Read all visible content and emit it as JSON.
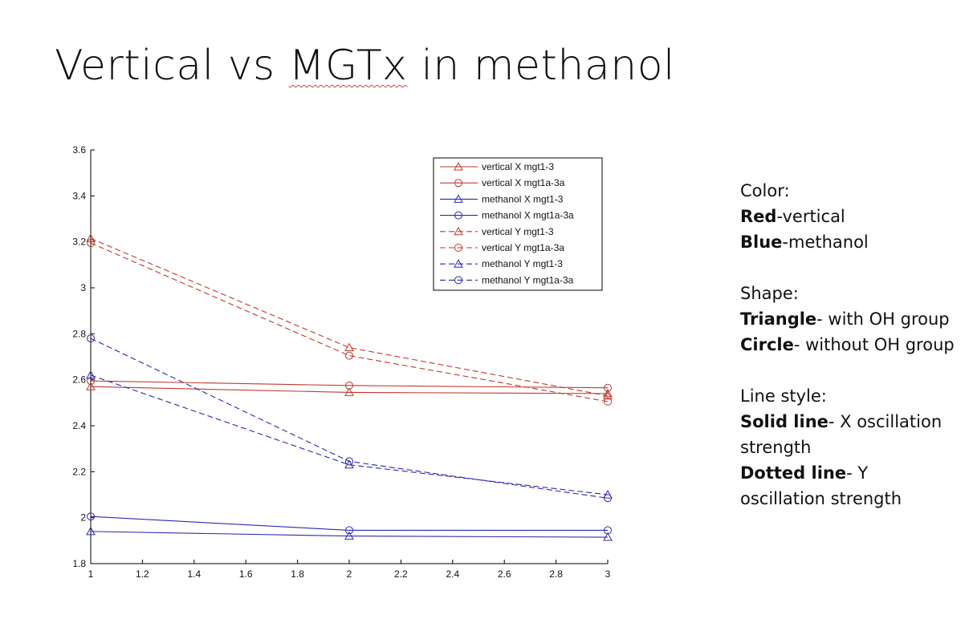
{
  "slide": {
    "title_parts": [
      "Vertical vs ",
      "MGTx",
      " in methanol"
    ]
  },
  "notes": {
    "color_heading": "Color:",
    "color_items": [
      {
        "bold": "Red",
        "text": "-vertical"
      },
      {
        "bold": "Blue",
        "text": "-methanol"
      }
    ],
    "shape_heading": "Shape:",
    "shape_items": [
      {
        "bold": "Triangle",
        "text": "- with OH group"
      },
      {
        "bold": "Circle",
        "text": "- without OH group"
      }
    ],
    "line_heading": "Line style:",
    "line_items": [
      {
        "bold": "Solid line",
        "text": "- X oscillation strength"
      },
      {
        "bold": "Dotted line",
        "text": "- Y oscillation strength"
      }
    ]
  },
  "chart_data": {
    "type": "line",
    "title": "",
    "xlabel": "",
    "ylabel": "",
    "xlim": [
      1,
      3
    ],
    "ylim": [
      1.8,
      3.6
    ],
    "xticks": [
      "1",
      "1.2",
      "1.4",
      "1.6",
      "1.8",
      "2",
      "2.2",
      "2.4",
      "2.6",
      "2.8",
      "3"
    ],
    "yticks": [
      "1.8",
      "2",
      "2.2",
      "2.4",
      "2.6",
      "2.8",
      "3",
      "3.2",
      "3.4",
      "3.6"
    ],
    "grid": false,
    "legend_position": "top-right",
    "x": [
      1,
      2,
      3
    ],
    "series": [
      {
        "name": "vertical X mgt1-3",
        "values": [
          2.57,
          2.545,
          2.54
        ],
        "color": "#c0392b",
        "marker": "triangle",
        "dash": false
      },
      {
        "name": "vertical X mgt1a-3a",
        "values": [
          2.595,
          2.575,
          2.565
        ],
        "color": "#c0392b",
        "marker": "circle",
        "dash": false
      },
      {
        "name": "methanol X mgt1-3",
        "values": [
          1.94,
          1.92,
          1.915
        ],
        "color": "#2a2ab0",
        "marker": "triangle",
        "dash": false
      },
      {
        "name": "methanol X mgt1a-3a",
        "values": [
          2.005,
          1.945,
          1.945
        ],
        "color": "#2a2ab0",
        "marker": "circle",
        "dash": false
      },
      {
        "name": "vertical Y mgt1-3",
        "values": [
          3.215,
          2.74,
          2.53
        ],
        "color": "#c0392b",
        "marker": "triangle",
        "dash": true
      },
      {
        "name": "vertical Y mgt1a-3a",
        "values": [
          3.195,
          2.705,
          2.505
        ],
        "color": "#c0392b",
        "marker": "circle",
        "dash": true
      },
      {
        "name": "methanol Y mgt1-3",
        "values": [
          2.62,
          2.23,
          2.1
        ],
        "color": "#2a2ab0",
        "marker": "triangle",
        "dash": true
      },
      {
        "name": "methanol Y mgt1a-3a",
        "values": [
          2.78,
          2.245,
          2.085
        ],
        "color": "#2a2ab0",
        "marker": "circle",
        "dash": true
      }
    ]
  }
}
